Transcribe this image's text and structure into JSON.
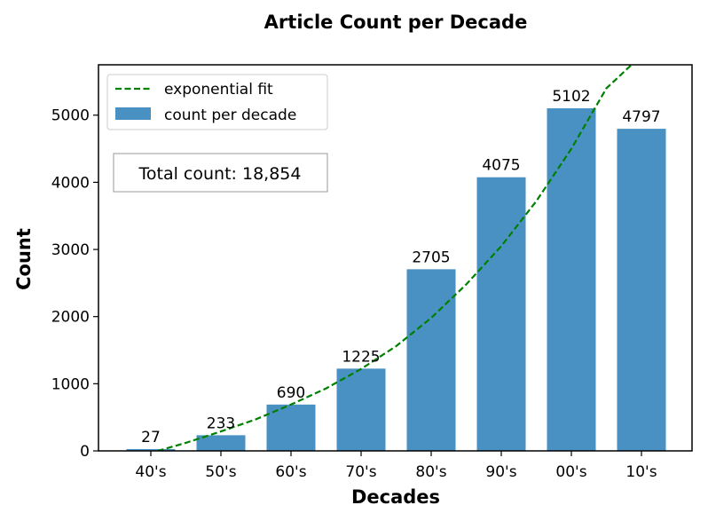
{
  "chart_data": {
    "type": "bar",
    "title": "Article Count per Decade",
    "xlabel": "Decades",
    "ylabel": "Count",
    "categories": [
      "40's",
      "50's",
      "60's",
      "70's",
      "80's",
      "90's",
      "00's",
      "10's"
    ],
    "series": [
      {
        "name": "count per decade",
        "values": [
          27,
          233,
          690,
          1225,
          2705,
          4075,
          5102,
          4797
        ]
      }
    ],
    "fit": {
      "name": "exponential fit",
      "style": "dashed",
      "points": [
        [
          -0.5,
          -300
        ],
        [
          -0.25,
          -150
        ],
        [
          0,
          -30
        ],
        [
          0.5,
          120
        ],
        [
          1,
          290
        ],
        [
          1.5,
          470
        ],
        [
          2,
          690
        ],
        [
          2.5,
          930
        ],
        [
          3,
          1220
        ],
        [
          3.5,
          1560
        ],
        [
          4,
          1980
        ],
        [
          4.5,
          2480
        ],
        [
          5,
          3050
        ],
        [
          5.5,
          3720
        ],
        [
          6,
          4500
        ],
        [
          6.5,
          5400
        ],
        [
          6.95,
          5840
        ]
      ]
    },
    "ylim": [
      0,
      5750
    ],
    "yticks": [
      0,
      1000,
      2000,
      3000,
      4000,
      5000
    ],
    "annotation": "Total count: 18,854",
    "legend_position": "upper-left",
    "grid": false,
    "colors": {
      "bar": "#4a91c3",
      "fit": "#008000"
    }
  }
}
